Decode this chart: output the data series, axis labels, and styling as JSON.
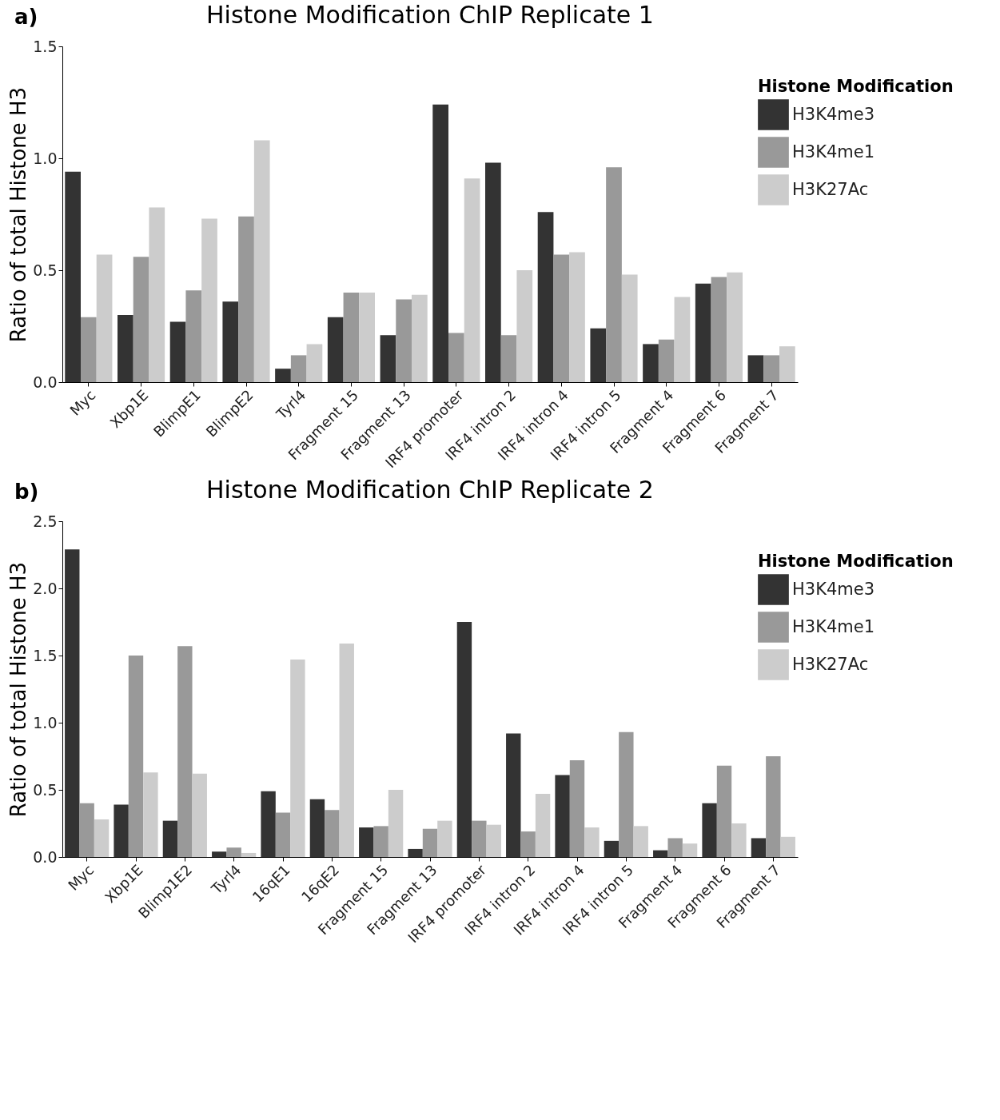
{
  "chart_data": [
    {
      "type": "bar",
      "title": "Histone Modification ChIP Replicate 1",
      "ylabel": "Ratio of total Histone H3",
      "legend_title": "Histone Modification",
      "annotations": [
        "a)"
      ],
      "categories": [
        "Myc",
        "Xbp1E",
        "BlimpE1",
        "BlimpE2",
        "Tyrl4",
        "Fragment 15",
        "Fragment 13",
        "IRF4 promoter",
        "IRF4 intron 2",
        "IRF4 intron 4",
        "IRF4 intron 5",
        "Fragment 4",
        "Fragment 6",
        "Fragment 7"
      ],
      "series": [
        {
          "name": "H3K4me3",
          "color": "#333333",
          "values": [
            0.94,
            0.3,
            0.27,
            0.36,
            0.06,
            0.29,
            0.21,
            1.24,
            0.98,
            0.76,
            0.24,
            0.17,
            0.44,
            0.12
          ]
        },
        {
          "name": "H3K4me1",
          "color": "#999999",
          "values": [
            0.29,
            0.56,
            0.41,
            0.74,
            0.12,
            0.4,
            0.37,
            0.22,
            0.21,
            0.57,
            0.96,
            0.19,
            0.47,
            0.12
          ]
        },
        {
          "name": "H3K27Ac",
          "color": "#cccccc",
          "values": [
            0.57,
            0.78,
            0.73,
            1.08,
            0.17,
            0.4,
            0.39,
            0.91,
            0.5,
            0.58,
            0.48,
            0.38,
            0.49,
            0.16
          ]
        }
      ],
      "ylim": [
        0,
        1.5
      ],
      "yticks": [
        {
          "value": 0,
          "label": "0.0"
        },
        {
          "value": 0.5,
          "label": "0.5"
        },
        {
          "value": 1,
          "label": "1.0"
        },
        {
          "value": 1.5,
          "label": "1.5"
        }
      ],
      "grid": false,
      "legend": "top right"
    },
    {
      "type": "bar",
      "title": "Histone Modification ChIP Replicate 2",
      "ylabel": "Ratio of total Histone H3",
      "legend_title": "Histone Modification",
      "annotations": [
        "b)"
      ],
      "categories": [
        "Myc",
        "Xbp1E",
        "Blimp1E2",
        "Tyrl4",
        "16qE1",
        "16qE2",
        "Fragment 15",
        "Fragment 13",
        "IRF4 promoter",
        "IRF4 intron 2",
        "IRF4 intron 4",
        "IRF4 intron 5",
        "Fragment 4",
        "Fragment 6",
        "Fragment 7"
      ],
      "series": [
        {
          "name": "H3K4me3",
          "color": "#333333",
          "values": [
            2.29,
            0.39,
            0.27,
            0.04,
            0.49,
            0.43,
            0.22,
            0.06,
            1.75,
            0.92,
            0.61,
            0.12,
            0.05,
            0.4,
            0.14
          ]
        },
        {
          "name": "H3K4me1",
          "color": "#999999",
          "values": [
            0.4,
            1.5,
            1.57,
            0.07,
            0.33,
            0.35,
            0.23,
            0.21,
            0.27,
            0.19,
            0.72,
            0.93,
            0.14,
            0.68,
            0.75
          ]
        },
        {
          "name": "H3K27Ac",
          "color": "#cccccc",
          "values": [
            0.28,
            0.63,
            0.62,
            0.03,
            1.47,
            1.59,
            0.5,
            0.27,
            0.24,
            0.47,
            0.22,
            0.23,
            0.1,
            0.25,
            0.15
          ]
        }
      ],
      "ylim": [
        0,
        2.5
      ],
      "yticks": [
        {
          "value": 0,
          "label": "0.0"
        },
        {
          "value": 0.5,
          "label": "0.5"
        },
        {
          "value": 1,
          "label": "1.0"
        },
        {
          "value": 1.5,
          "label": "1.5"
        },
        {
          "value": 2,
          "label": "2.0"
        },
        {
          "value": 2.5,
          "label": "2.5"
        }
      ],
      "grid": false,
      "legend": "top right"
    }
  ]
}
